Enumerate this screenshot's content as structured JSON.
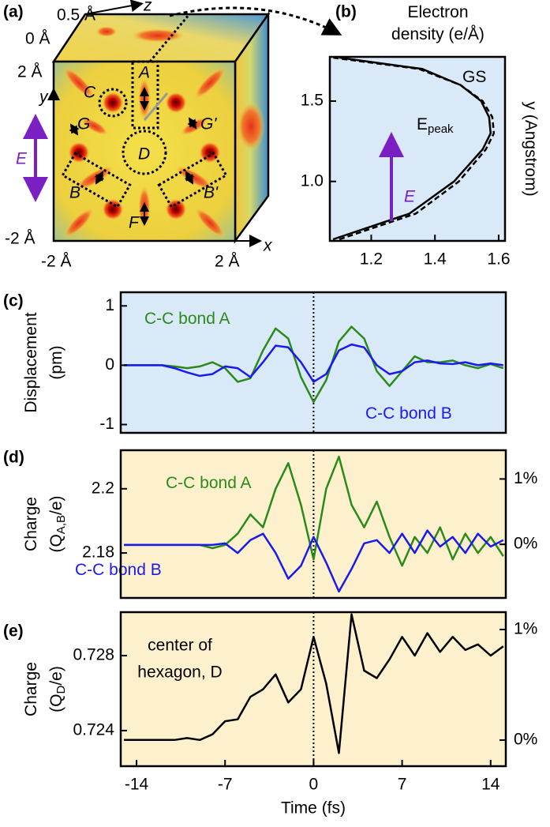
{
  "diagram": {
    "label": "(a)",
    "axis_labels": {
      "z": "z",
      "y": "y",
      "x": "x"
    },
    "scale": {
      "depth_half": "0.5 Å",
      "depth_zero": "0 Å",
      "y_top": "2 Å",
      "y_bottom": "-2 Å",
      "x_left": "-2 Å",
      "x_right": "2 Å"
    },
    "sites": {
      "A": "A",
      "B": "B",
      "B2": "B'",
      "C": "C",
      "D": "D",
      "F": "F",
      "G": "G",
      "G2": "G'"
    },
    "field": "E"
  },
  "chart_data": [
    {
      "label": "(b)",
      "type": "line",
      "value_axis": "x",
      "background": "#d9e9f8",
      "title": [
        {
          "text": "Electron"
        },
        {
          "text": "density (e/Å)"
        }
      ],
      "ylabel": [
        {
          "text": "y (Angstrom)"
        }
      ],
      "annotation": "E",
      "annotation_color": "#7a1fc4",
      "y": [
        0.64,
        0.8,
        1.0,
        1.2,
        1.3,
        1.4,
        1.5,
        1.6,
        1.7,
        1.77
      ],
      "series": [
        {
          "name": "GS",
          "color": "#000000",
          "dash": false,
          "values": [
            1.08,
            1.32,
            1.46,
            1.55,
            1.575,
            1.57,
            1.545,
            1.48,
            1.36,
            1.1
          ]
        },
        {
          "name": "E",
          "sub": "peak",
          "color": "#000000",
          "dash": true,
          "values": [
            1.1,
            1.34,
            1.475,
            1.56,
            1.585,
            1.58,
            1.55,
            1.48,
            1.35,
            1.08
          ]
        }
      ],
      "xlim": [
        1.07,
        1.62
      ],
      "xticks": [
        1.2,
        1.4,
        1.6
      ],
      "ylim": [
        0.63,
        1.775
      ],
      "yticks": [
        {
          "value": 1,
          "label": "1.0"
        },
        1.5
      ]
    },
    {
      "label": "(c)",
      "type": "line",
      "background": "#d9e9f8",
      "ylabel": [
        {
          "text": "Displacement"
        },
        {
          "text": "(pm)"
        }
      ],
      "x": [
        -15,
        -14,
        -13,
        -12,
        -11,
        -10,
        -9,
        -8,
        -7,
        -6,
        -5,
        -4,
        -3,
        -2,
        -1,
        0,
        1,
        2,
        3,
        4,
        5,
        6,
        7,
        8,
        9,
        10,
        11,
        12,
        13,
        14,
        15
      ],
      "series": [
        {
          "name": "C-C bond A",
          "color": "#2a8a1a",
          "values": [
            0,
            0,
            0,
            0,
            -0.02,
            -0.05,
            -0.02,
            0.05,
            -0.05,
            -0.28,
            -0.22,
            0.25,
            0.62,
            0.45,
            -0.2,
            -0.62,
            -0.25,
            0.4,
            0.65,
            0.45,
            -0.1,
            -0.35,
            -0.1,
            0.15,
            0.05,
            0.05,
            0.08,
            0,
            -0.05,
            0.02,
            -0.05
          ]
        },
        {
          "name": "C-C bond B",
          "color": "#1a1aee",
          "values": [
            0,
            0,
            0,
            0,
            -0.05,
            -0.12,
            -0.18,
            -0.15,
            -0.02,
            -0.05,
            -0.2,
            0.05,
            0.33,
            0.3,
            0.05,
            -0.28,
            -0.15,
            0.25,
            0.35,
            0.3,
            0,
            -0.15,
            -0.1,
            0.05,
            0.08,
            0.03,
            0.02,
            0.05,
            0,
            0.03,
            0
          ]
        }
      ],
      "vline": 0,
      "xlim": [
        -15.25,
        15.2
      ],
      "ylim": [
        -1.14,
        1.23
      ],
      "yticks": [
        -1,
        0,
        1
      ]
    },
    {
      "label": "(d)",
      "type": "line",
      "background": "#fdf0cc",
      "ylabel": [
        {
          "text": "Charge"
        },
        {
          "text": "(Q",
          "sub": "A,B",
          "tail": "/e)"
        }
      ],
      "x": [
        -15,
        -14,
        -13,
        -12,
        -11,
        -10,
        -9,
        -8,
        -7,
        -6,
        -5,
        -4,
        -3,
        -2,
        -1,
        0,
        1,
        2,
        3,
        4,
        5,
        6,
        7,
        8,
        9,
        10,
        11,
        12,
        13,
        14,
        15
      ],
      "series": [
        {
          "name": "C-C bond A",
          "color": "#2a8a1a",
          "values": [
            2.1825,
            2.1825,
            2.1825,
            2.1825,
            2.1825,
            2.1825,
            2.1825,
            2.1815,
            2.1825,
            2.186,
            2.192,
            2.188,
            2.2,
            2.208,
            2.195,
            2.178,
            2.2,
            2.21,
            2.195,
            2.188,
            2.196,
            2.185,
            2.176,
            2.185,
            2.18,
            2.188,
            2.178,
            2.186,
            2.18,
            2.185,
            2.179
          ]
        },
        {
          "name": "C-C bond B",
          "color": "#1a1aee",
          "values": [
            2.1825,
            2.1825,
            2.1825,
            2.1825,
            2.1825,
            2.1825,
            2.1825,
            2.1825,
            2.183,
            2.18,
            2.184,
            2.186,
            2.18,
            2.172,
            2.176,
            2.185,
            2.177,
            2.168,
            2.175,
            2.183,
            2.184,
            2.18,
            2.186,
            2.18,
            2.187,
            2.182,
            2.185,
            2.18,
            2.186,
            2.182,
            2.184
          ]
        }
      ],
      "vline": 0,
      "xlim": [
        -15.25,
        15.2
      ],
      "ylim": [
        2.166,
        2.212
      ],
      "yticks": [
        2.18,
        2.2
      ],
      "y2lim": [
        -0.82,
        1.44
      ],
      "y2ticks": [
        {
          "value": 0,
          "label": "0%"
        },
        {
          "value": 1,
          "label": "1%"
        }
      ]
    },
    {
      "label": "(e)",
      "type": "line",
      "background": "#fdf0cc",
      "ylabel": [
        {
          "text": "Charge"
        },
        {
          "text": "(Q",
          "sub": "D",
          "tail": "/e)"
        }
      ],
      "xlabel": "Time (fs)",
      "annotation": [
        "center of",
        "hexagon, D"
      ],
      "x": [
        -15,
        -14,
        -13,
        -12,
        -11,
        -10,
        -9,
        -8,
        -7,
        -6,
        -5,
        -4,
        -3,
        -2,
        -1,
        0,
        1,
        2,
        3,
        4,
        5,
        6,
        7,
        8,
        9,
        10,
        11,
        12,
        13,
        14,
        15
      ],
      "series": [
        {
          "color": "#000000",
          "values": [
            0.7235,
            0.7235,
            0.7235,
            0.7235,
            0.7235,
            0.7236,
            0.7235,
            0.7238,
            0.7245,
            0.7246,
            0.7258,
            0.7262,
            0.727,
            0.7255,
            0.7262,
            0.729,
            0.7265,
            0.7228,
            0.7302,
            0.7272,
            0.7268,
            0.7278,
            0.729,
            0.728,
            0.7292,
            0.7282,
            0.729,
            0.7283,
            0.7286,
            0.728,
            0.7285
          ]
        }
      ],
      "vline": 0,
      "xlim": [
        -15.25,
        15.2
      ],
      "xticks": [
        -14,
        -7,
        0,
        7,
        14
      ],
      "ylim": [
        0.7221,
        0.73032
      ],
      "yticks": [
        0.724,
        0.728
      ],
      "y2lim": [
        -0.236,
        1.157
      ],
      "y2ticks": [
        {
          "value": 0,
          "label": "0%"
        },
        {
          "value": 1,
          "label": "1%"
        }
      ]
    }
  ]
}
